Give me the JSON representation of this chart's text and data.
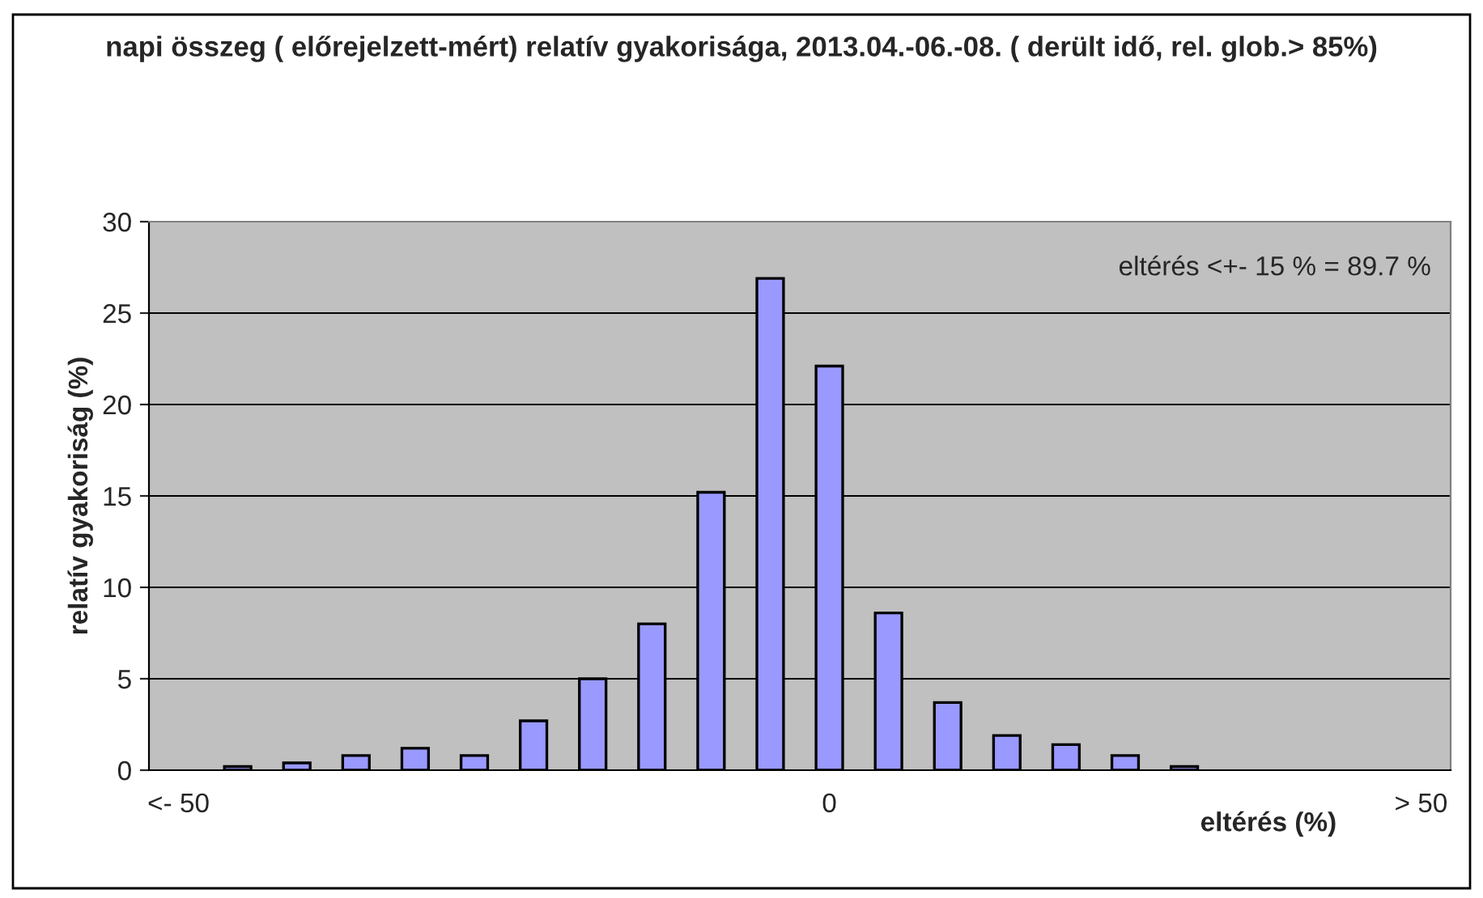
{
  "chart_data": {
    "type": "bar",
    "title": "napi összeg ( előrejelzett-mért) relatív gyakorisága, 2013.04.-06.-08. ( derült idő, rel. glob.> 85%)",
    "xlabel": "eltérés (%)",
    "ylabel": "relatív gyakoriság (%)",
    "categories": [
      "<- 50",
      null,
      null,
      null,
      null,
      null,
      null,
      null,
      null,
      null,
      null,
      "0",
      null,
      null,
      null,
      null,
      null,
      null,
      null,
      null,
      null,
      "> 50"
    ],
    "values": [
      null,
      0.2,
      0.4,
      0.8,
      1.2,
      0.8,
      2.7,
      5.0,
      8.0,
      15.2,
      26.9,
      22.1,
      8.6,
      3.7,
      1.9,
      1.4,
      0.8,
      0.2,
      null,
      null,
      null,
      null
    ],
    "color": "#9999ff",
    "ylim": [
      0,
      30
    ],
    "yticks": [
      0,
      5,
      10,
      15,
      20,
      25,
      30
    ],
    "grid": "y",
    "annotations": [
      "eltérés <+- 15 % = 89.7 %"
    ]
  }
}
